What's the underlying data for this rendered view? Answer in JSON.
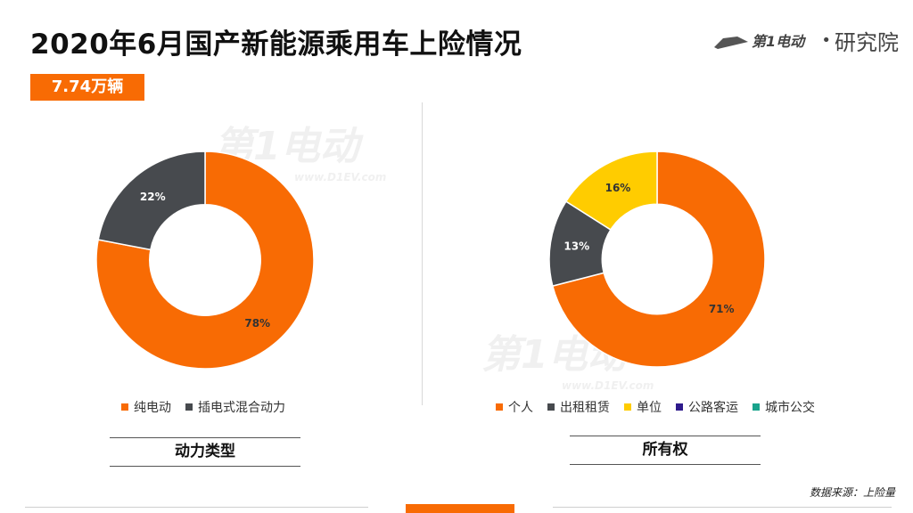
{
  "header": {
    "title": "2020年6月国产新能源乘用车上险情况",
    "brand_name": "研究院",
    "brand_logo_text": "第1电动"
  },
  "total_badge": "7.74万辆",
  "colors": {
    "accent": "#f86b04",
    "dark_gray": "#474a4e",
    "yellow": "#ffcc00",
    "purple": "#2f1b8c",
    "teal": "#1aa38c"
  },
  "watermark": {
    "main": "第1电动",
    "sub": "www.D1EV.com"
  },
  "chart_data": [
    {
      "type": "pie",
      "donut": true,
      "caption": "动力类型",
      "categories": [
        "纯电动",
        "插电式混合动力"
      ],
      "values": [
        78,
        22
      ],
      "labels": [
        "78%",
        "22%"
      ],
      "colors": [
        "#f86b04",
        "#474a4e"
      ],
      "legend_position": "bottom"
    },
    {
      "type": "pie",
      "donut": true,
      "caption": "所有权",
      "categories": [
        "个人",
        "出租租赁",
        "单位",
        "公路客运",
        "城市公交"
      ],
      "values": [
        71,
        13,
        16,
        0,
        0
      ],
      "labels": [
        "71%",
        "13%",
        "16%",
        "",
        ""
      ],
      "colors": [
        "#f86b04",
        "#474a4e",
        "#ffcc00",
        "#2f1b8c",
        "#1aa38c"
      ],
      "legend_position": "bottom"
    }
  ],
  "source": "数据来源：上险量"
}
